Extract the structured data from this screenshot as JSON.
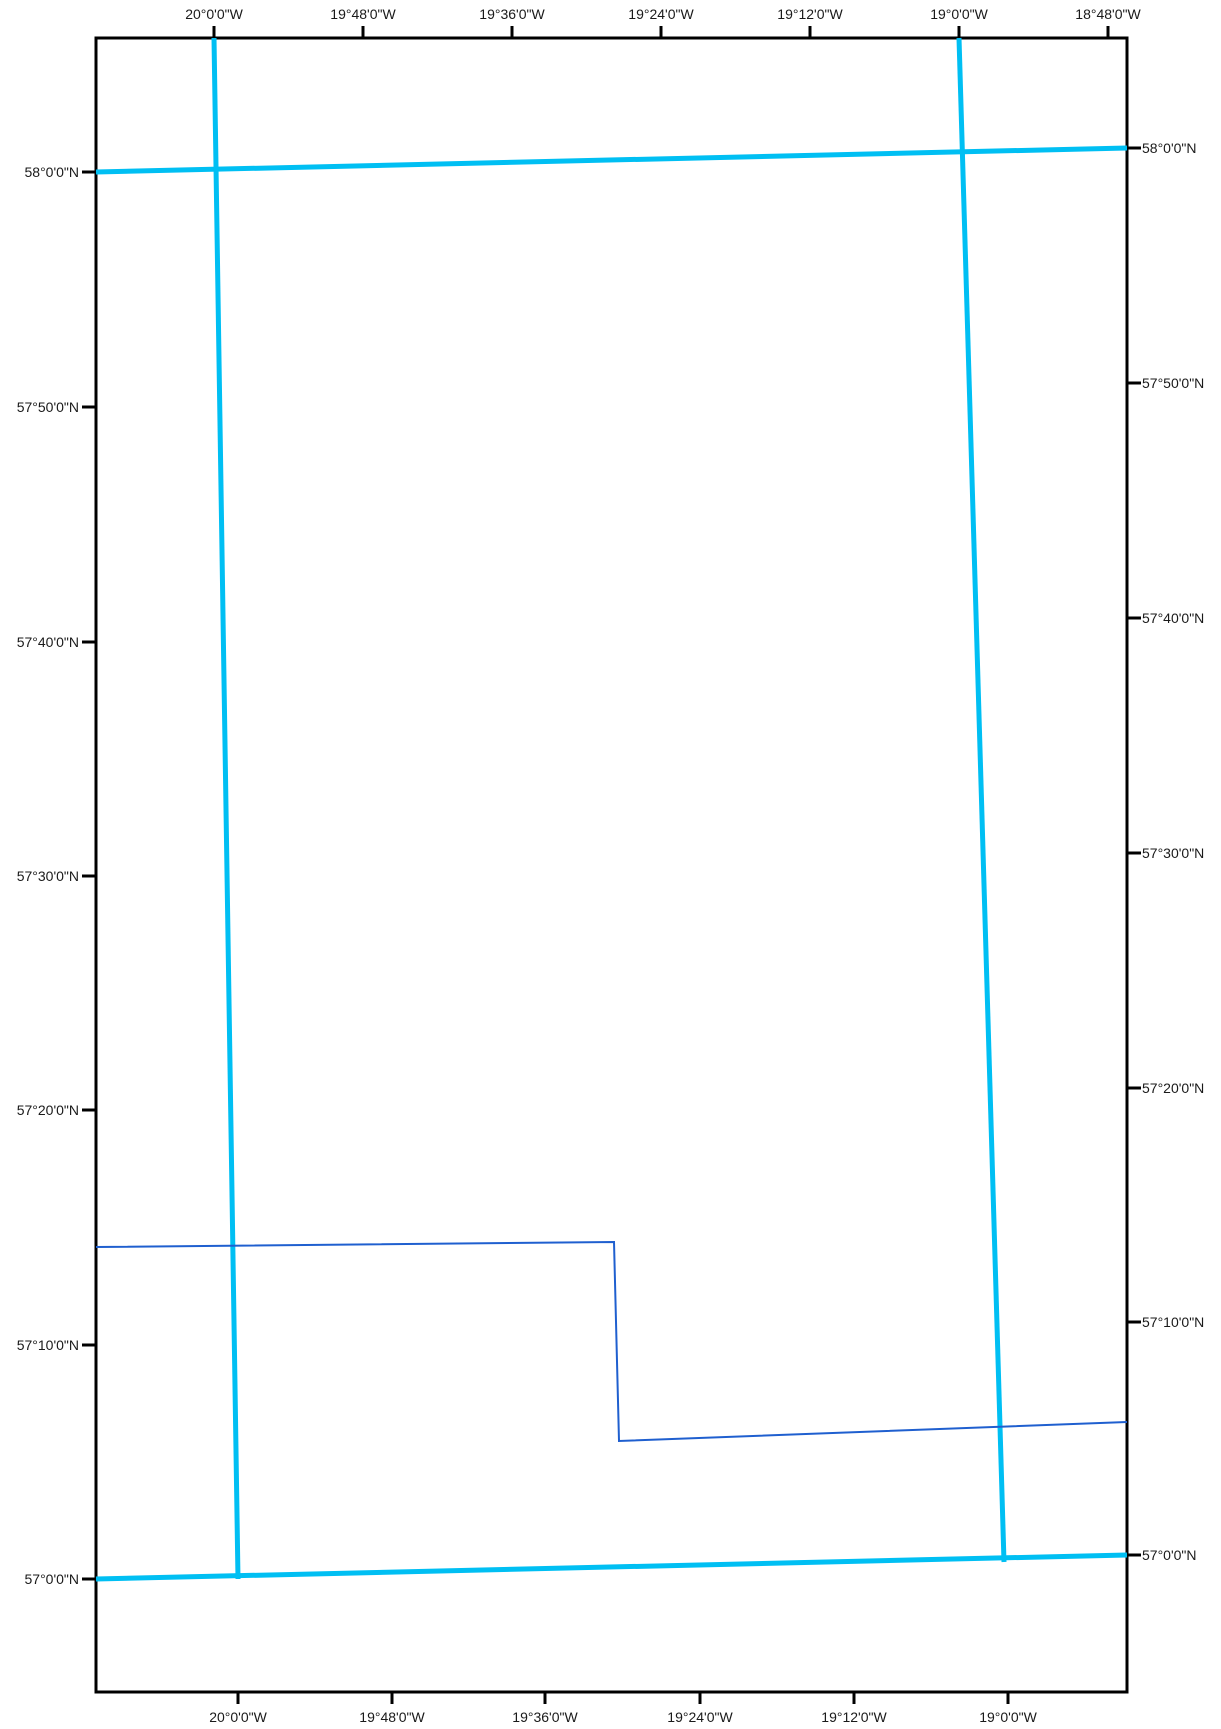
{
  "map": {
    "frame_color": "#000000",
    "graticule_color": "#00bff3",
    "boundary_color": "#1f5fcf",
    "top_ticks": [
      "20°0'0\"W",
      "19°48'0\"W",
      "19°36'0\"W",
      "19°24'0\"W",
      "19°12'0\"W",
      "19°0'0\"W",
      "18°48'0\"W"
    ],
    "bottom_ticks": [
      "20°0'0\"W",
      "19°48'0\"W",
      "19°36'0\"W",
      "19°24'0\"W",
      "19°12'0\"W",
      "19°0'0\"W"
    ],
    "left_ticks": [
      "58°0'0\"N",
      "57°50'0\"N",
      "57°40'0\"N",
      "57°30'0\"N",
      "57°20'0\"N",
      "57°10'0\"N",
      "57°0'0\"N"
    ],
    "right_ticks": [
      "58°0'0\"N",
      "57°50'0\"N",
      "57°40'0\"N",
      "57°30'0\"N",
      "57°20'0\"N",
      "57°10'0\"N",
      "57°0'0\"N"
    ]
  }
}
